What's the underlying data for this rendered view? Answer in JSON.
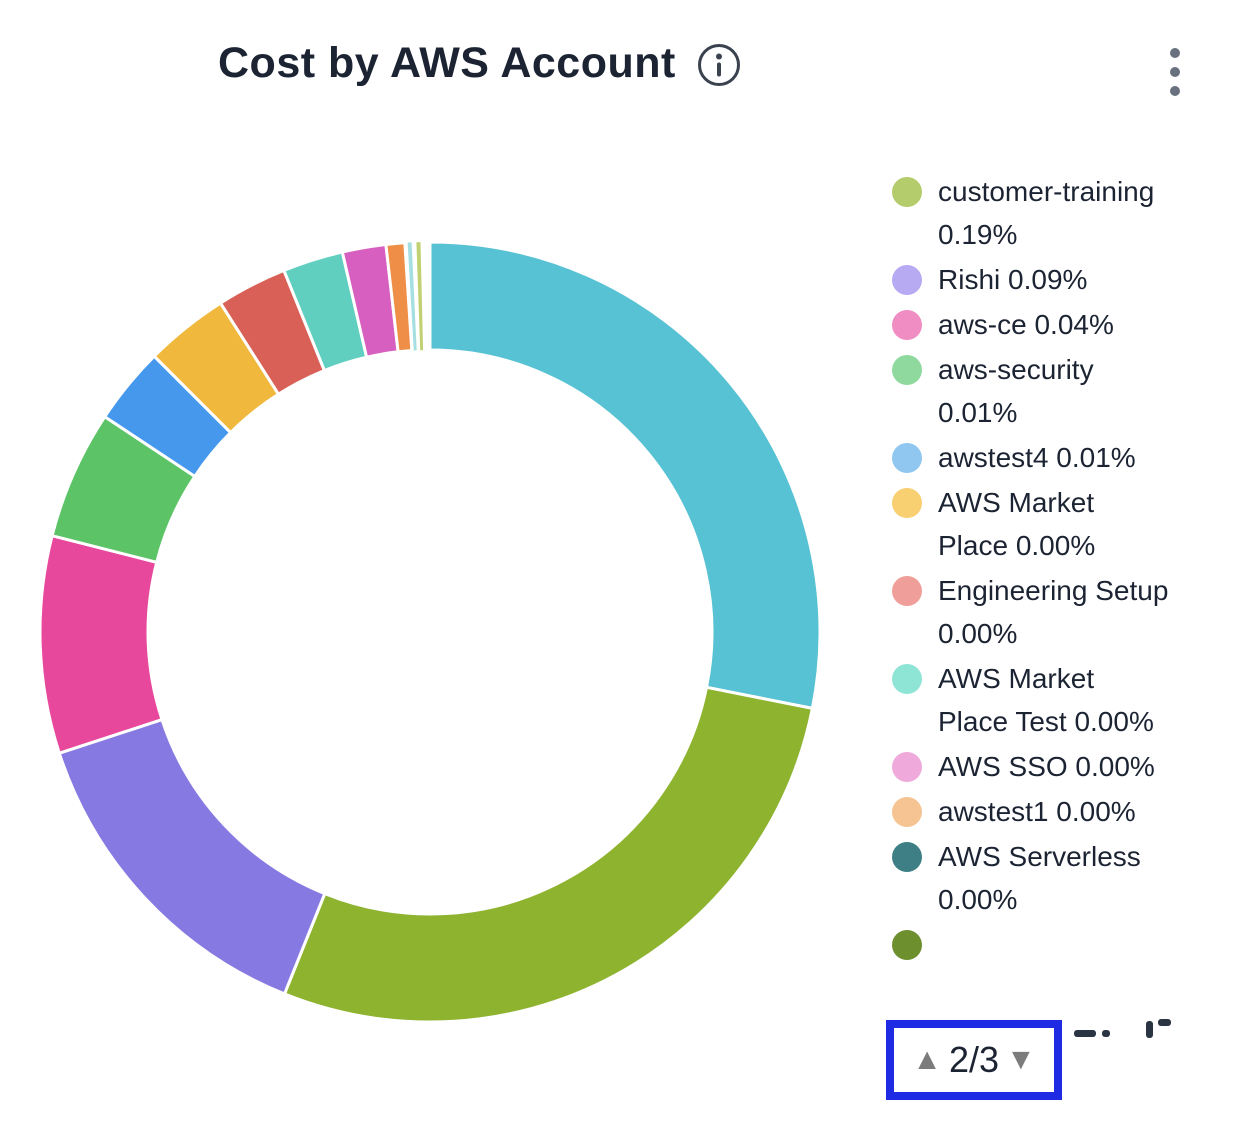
{
  "header": {
    "title": "Cost by AWS Account",
    "info_icon": "info-circle",
    "menu_icon": "kebab-vertical-dots"
  },
  "chart_data": {
    "type": "pie",
    "subtype": "donut",
    "title": "Cost by AWS Account",
    "legend_position": "right",
    "legend_page": {
      "current": 2,
      "total": 3,
      "label": "2/3"
    },
    "legend_items": [
      {
        "name": "customer-training",
        "percent": "0.19%",
        "label": "customer-training 0.19%",
        "color": "#b4cc6b"
      },
      {
        "name": "Rishi",
        "percent": "0.09%",
        "label": "Rishi 0.09%",
        "color": "#b7a9f2"
      },
      {
        "name": "aws-ce",
        "percent": "0.04%",
        "label": "aws-ce 0.04%",
        "color": "#f08dc2"
      },
      {
        "name": "aws-security",
        "percent": "0.01%",
        "label": "aws-security 0.01%",
        "color": "#8fd99f"
      },
      {
        "name": "awstest4",
        "percent": "0.01%",
        "label": "awstest4 0.01%",
        "color": "#8fc7f0"
      },
      {
        "name": "AWS Market Place",
        "percent": "0.00%",
        "label": "AWS Market Place 0.00%",
        "color": "#f8cf71"
      },
      {
        "name": "Engineering Setup",
        "percent": "0.00%",
        "label": "Engineering Setup 0.00%",
        "color": "#ef9e99"
      },
      {
        "name": "AWS Market Place Test",
        "percent": "0.00%",
        "label": "AWS Market Place Test 0.00%",
        "color": "#8fe5d5"
      },
      {
        "name": "AWS SSO",
        "percent": "0.00%",
        "label": "AWS SSO 0.00%",
        "color": "#efaadb"
      },
      {
        "name": "awstest1",
        "percent": "0.00%",
        "label": "awstest1 0.00%",
        "color": "#f6c492"
      },
      {
        "name": "AWS Serverless",
        "percent": "0.00%",
        "label": "AWS Serverless 0.00%",
        "color": "#3d7f85"
      },
      {
        "label": "",
        "color": "#6e8f2e",
        "clipped": true
      }
    ],
    "slices": [
      {
        "color": "#57c2d3",
        "start_deg": 0,
        "end_deg": 101.3,
        "pct_est": 28.1
      },
      {
        "color": "#8db32f",
        "start_deg": 101.3,
        "end_deg": 201.9,
        "pct_est": 27.9
      },
      {
        "color": "#8779e2",
        "start_deg": 201.9,
        "end_deg": 251.9,
        "pct_est": 13.9
      },
      {
        "color": "#e8489c",
        "start_deg": 251.9,
        "end_deg": 284.3,
        "pct_est": 9.0
      },
      {
        "color": "#5cc366",
        "start_deg": 284.3,
        "end_deg": 303.5,
        "pct_est": 5.3
      },
      {
        "color": "#4598ec",
        "start_deg": 303.5,
        "end_deg": 315.0,
        "pct_est": 3.2
      },
      {
        "color": "#f0b83d",
        "start_deg": 315.0,
        "end_deg": 327.5,
        "pct_est": 3.5
      },
      {
        "color": "#d96057",
        "start_deg": 327.5,
        "end_deg": 338.0,
        "pct_est": 2.9
      },
      {
        "color": "#60cfc0",
        "start_deg": 338.0,
        "end_deg": 347.0,
        "pct_est": 2.5
      },
      {
        "color": "#d75fc0",
        "start_deg": 347.0,
        "end_deg": 353.5,
        "pct_est": 1.8
      },
      {
        "color": "#ef8e46",
        "start_deg": 353.5,
        "end_deg": 356.3,
        "pct_est": 0.8
      },
      {
        "color": "#a5dfe2",
        "start_deg": 356.7,
        "end_deg": 357.3,
        "pct_est": 0.2
      },
      {
        "color": "#c0d173",
        "start_deg": 358.0,
        "end_deg": 358.6,
        "pct_est": 0.2
      }
    ],
    "geometry": {
      "outer_radius": 390,
      "inner_radius": 282
    }
  },
  "pagination": {
    "up_icon": "▲",
    "label": "2/3",
    "down_icon": "▼"
  }
}
